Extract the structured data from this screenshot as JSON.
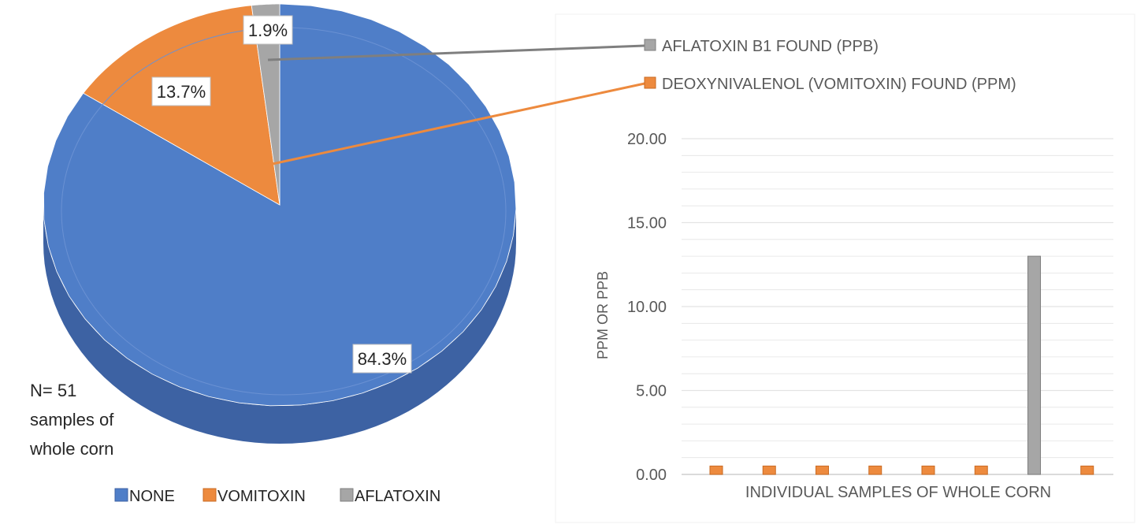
{
  "colors": {
    "none": "#4f7ec8",
    "none_side": "#3d62a3",
    "vomitoxin": "#ed8a3e",
    "vomitoxin_side": "#c96a22",
    "aflatoxin": "#a6a6a6",
    "aflatoxin_side": "#7f7f7f",
    "grid": "#e3e3e3",
    "text": "#595959"
  },
  "annotation": {
    "line1": "N= 51",
    "line2": "samples of",
    "line3": "whole corn"
  },
  "chart_data": [
    {
      "type": "pie",
      "style": "3d-exploded",
      "labels": [
        "NONE",
        "VOMITOXIN",
        "AFLATOXIN"
      ],
      "values": [
        84.3,
        13.7,
        1.9
      ],
      "data_labels": [
        "84.3%",
        "13.7%",
        "1.9%"
      ],
      "legend_position": "bottom"
    },
    {
      "type": "bar",
      "ylabel": "PPM OR PPB",
      "xlabel": "INDIVIDUAL SAMPLES OF WHOLE CORN",
      "ylim": [
        0,
        20
      ],
      "yticks": [
        "0.00",
        "5.00",
        "10.00",
        "15.00",
        "20.00"
      ],
      "grid": true,
      "legend_position": "top",
      "series": [
        {
          "name": "AFLATOXIN B1 FOUND (PPB)",
          "color_key": "aflatoxin",
          "values": [
            null,
            null,
            null,
            null,
            null,
            null,
            13.0,
            null
          ]
        },
        {
          "name": "DEOXYNIVALENOL (VOMITOXIN) FOUND (PPM)",
          "color_key": "vomitoxin",
          "values": [
            0.5,
            0.5,
            0.5,
            0.5,
            0.5,
            0.5,
            null,
            0.5
          ]
        }
      ]
    }
  ]
}
